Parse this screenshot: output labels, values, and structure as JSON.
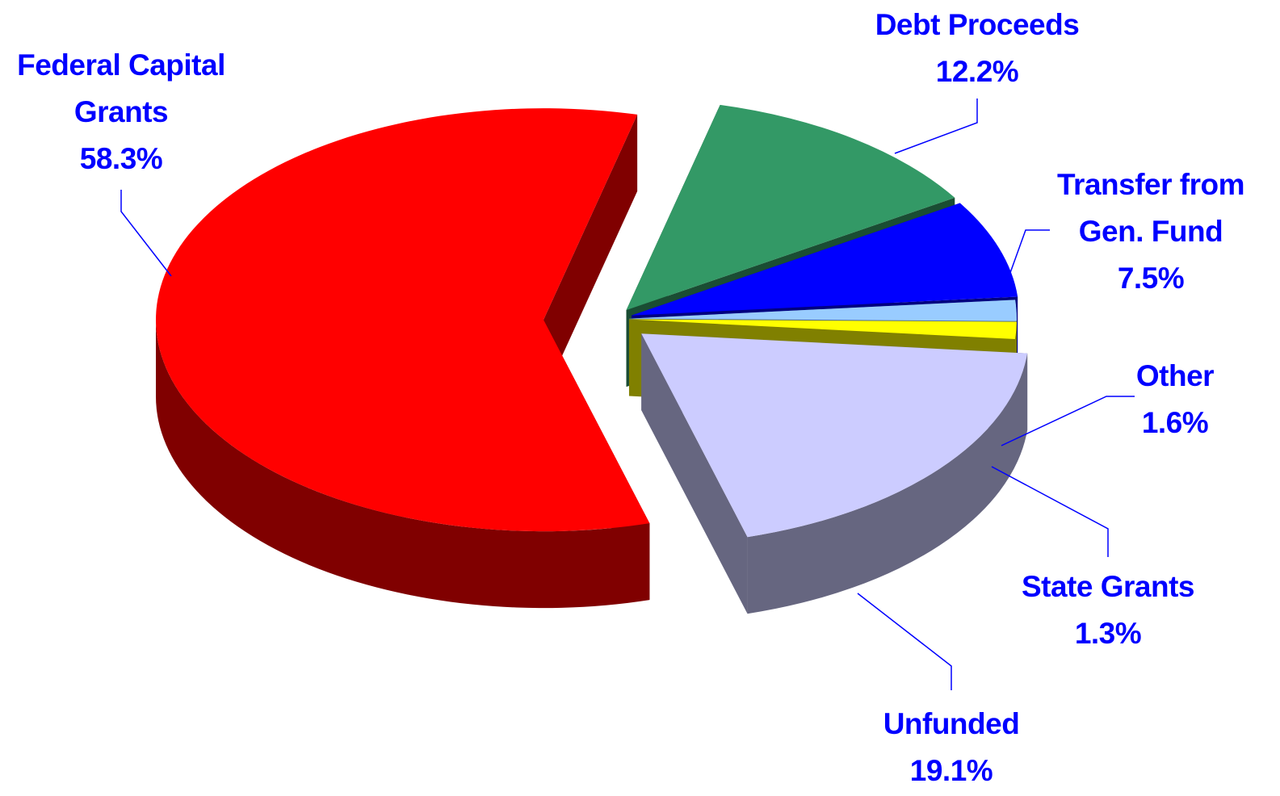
{
  "chart_data": {
    "type": "pie",
    "categories": [
      "Debt Proceeds",
      "Transfer from Gen. Fund",
      "Other",
      "State Grants",
      "Unfunded",
      "Federal Capital Grants"
    ],
    "values": [
      12.2,
      7.5,
      1.6,
      1.3,
      19.1,
      58.3
    ],
    "value_labels": [
      "12.2%",
      "7.5%",
      "1.6%",
      "1.3%",
      "19.1%",
      "58.3%"
    ],
    "colors": [
      "#339966",
      "#0000ff",
      "#99ccff",
      "#ffff00",
      "#ccccff",
      "#ff0000"
    ]
  }
}
